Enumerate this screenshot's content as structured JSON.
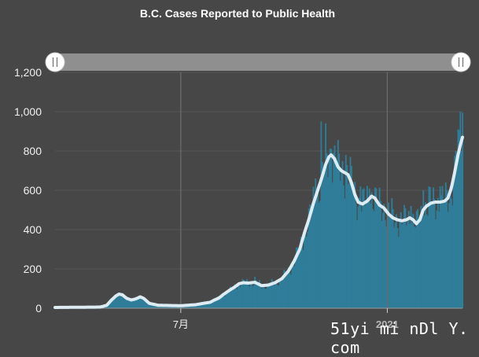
{
  "chart_data": {
    "type": "bar",
    "title": "B.C. Cases Reported to Public Health",
    "ylim": [
      0,
      1200
    ],
    "yticks": [
      "0",
      "200",
      "400",
      "600",
      "800",
      "1,000",
      "1,200"
    ],
    "xticks": [
      {
        "label": "7月",
        "bold": false,
        "day": 112
      },
      {
        "label": "2021",
        "bold": true,
        "day": 296
      }
    ],
    "grid": true,
    "range_slider": true,
    "colors": {
      "bars": "#2f7d99",
      "line": "#dcecf2",
      "background": "#474747",
      "grid": "#555555",
      "slider": "#8f8f8f"
    },
    "keypoints": [
      [
        0,
        4
      ],
      [
        40,
        6
      ],
      [
        46,
        15
      ],
      [
        50,
        40
      ],
      [
        54,
        62
      ],
      [
        57,
        72
      ],
      [
        60,
        68
      ],
      [
        64,
        50
      ],
      [
        68,
        42
      ],
      [
        72,
        48
      ],
      [
        76,
        58
      ],
      [
        79,
        50
      ],
      [
        84,
        25
      ],
      [
        92,
        15
      ],
      [
        112,
        13
      ],
      [
        125,
        18
      ],
      [
        132,
        25
      ],
      [
        138,
        30
      ],
      [
        142,
        42
      ],
      [
        146,
        52
      ],
      [
        150,
        70
      ],
      [
        155,
        90
      ],
      [
        160,
        108
      ],
      [
        164,
        125
      ],
      [
        168,
        130
      ],
      [
        172,
        128
      ],
      [
        178,
        132
      ],
      [
        184,
        115
      ],
      [
        190,
        118
      ],
      [
        196,
        130
      ],
      [
        202,
        150
      ],
      [
        208,
        190
      ],
      [
        213,
        240
      ],
      [
        218,
        300
      ],
      [
        222,
        380
      ],
      [
        226,
        450
      ],
      [
        230,
        530
      ],
      [
        234,
        600
      ],
      [
        238,
        670
      ],
      [
        241,
        730
      ],
      [
        244,
        770
      ],
      [
        246,
        780
      ],
      [
        249,
        760
      ],
      [
        252,
        720
      ],
      [
        255,
        700
      ],
      [
        258,
        690
      ],
      [
        261,
        680
      ],
      [
        264,
        640
      ],
      [
        267,
        580
      ],
      [
        270,
        540
      ],
      [
        274,
        530
      ],
      [
        278,
        545
      ],
      [
        282,
        570
      ],
      [
        285,
        560
      ],
      [
        289,
        525
      ],
      [
        293,
        510
      ],
      [
        297,
        480
      ],
      [
        301,
        460
      ],
      [
        305,
        450
      ],
      [
        309,
        445
      ],
      [
        313,
        450
      ],
      [
        316,
        460
      ],
      [
        319,
        450
      ],
      [
        322,
        430
      ],
      [
        325,
        450
      ],
      [
        328,
        500
      ],
      [
        331,
        520
      ],
      [
        335,
        535
      ],
      [
        339,
        540
      ],
      [
        343,
        540
      ],
      [
        347,
        545
      ],
      [
        350,
        560
      ],
      [
        353,
        610
      ],
      [
        356,
        690
      ],
      [
        359,
        780
      ],
      [
        362,
        850
      ],
      [
        363,
        870
      ]
    ],
    "series": [
      {
        "name": "",
        "kind": "bars"
      },
      {
        "name": "",
        "kind": "rolling-average"
      }
    ],
    "spikes": [
      [
        178,
        160
      ],
      [
        232,
        660
      ],
      [
        237,
        950
      ],
      [
        241,
        940
      ],
      [
        246,
        810
      ],
      [
        250,
        770
      ],
      [
        259,
        780
      ],
      [
        263,
        770
      ],
      [
        272,
        620
      ],
      [
        280,
        610
      ],
      [
        286,
        610
      ],
      [
        300,
        560
      ],
      [
        317,
        520
      ],
      [
        328,
        600
      ],
      [
        333,
        620
      ],
      [
        343,
        620
      ],
      [
        357,
        800
      ],
      [
        361,
        1000
      ],
      [
        363,
        995
      ]
    ]
  },
  "watermark": "51yi mi nDl Y. com"
}
